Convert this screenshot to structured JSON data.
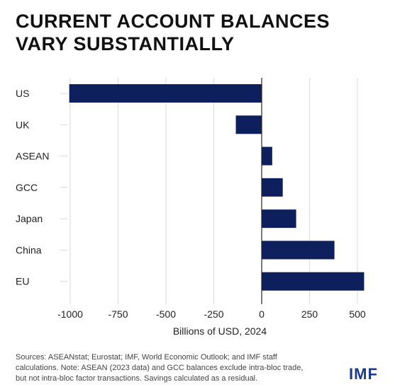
{
  "title_lines": [
    "CURRENT ACCOUNT BALANCES",
    "VARY SUBSTANTIALLY"
  ],
  "source_lines": [
    "Sources: ASEANstat; Eurostat; IMF, World Economic Outlook; and IMF staff",
    "calculations. Note: ASEAN (2023 data) and GCC balances exclude intra-bloc trade,",
    "but not intra-bloc factor transactions. Savings calculated as a residual."
  ],
  "logo": "IMF",
  "colors": {
    "bar": "#0d1f5c",
    "grid": "#d9d9d9",
    "zero_line": "#222222",
    "logo": "#1b3a8c"
  },
  "chart_data": {
    "type": "bar",
    "orientation": "horizontal",
    "categories": [
      "US",
      "UK",
      "ASEAN",
      "GCC",
      "Japan",
      "China",
      "EU"
    ],
    "values": [
      -1005,
      -135,
      55,
      110,
      180,
      380,
      535
    ],
    "xlabel": "Billions of USD, 2024",
    "ylabel": "",
    "xlim": [
      -1100,
      550
    ],
    "xticks": [
      -1000,
      -750,
      -500,
      -250,
      0,
      250,
      500
    ],
    "xtick_labels": [
      "-1000",
      "-750",
      "-500",
      "-250",
      "0",
      "250",
      "500"
    ],
    "grid": "vertical",
    "legend": "none"
  }
}
